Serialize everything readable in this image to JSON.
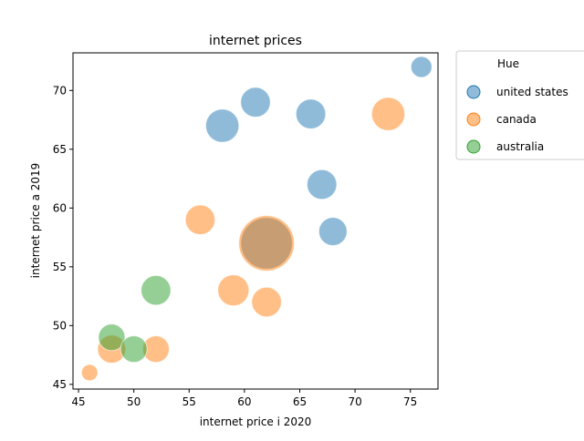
{
  "chart_data": {
    "type": "scatter",
    "title": "internet prices",
    "xlabel": "internet price i 2020",
    "ylabel": "internet price a 2019",
    "xlim": [
      44.5,
      77.5
    ],
    "ylim": [
      44.6,
      73.2
    ],
    "xticks": [
      45,
      50,
      55,
      60,
      65,
      70,
      75
    ],
    "yticks": [
      45,
      50,
      55,
      60,
      65,
      70
    ],
    "grid": false,
    "legend": {
      "title": "Hue",
      "placement": "outside-top-right",
      "entries": [
        "united states",
        "canada",
        "australia"
      ]
    },
    "series": [
      {
        "name": "united states",
        "color": "#1f77b4",
        "points": [
          {
            "x": 76,
            "y": 72,
            "size": 1
          },
          {
            "x": 61,
            "y": 69,
            "size": 2
          },
          {
            "x": 58,
            "y": 67,
            "size": 2.5
          },
          {
            "x": 66,
            "y": 68,
            "size": 2
          },
          {
            "x": 67,
            "y": 62,
            "size": 2
          },
          {
            "x": 68,
            "y": 58,
            "size": 1.8
          },
          {
            "x": 62,
            "y": 57,
            "size": 6
          }
        ]
      },
      {
        "name": "canada",
        "color": "#ff7f0e",
        "points": [
          {
            "x": 73,
            "y": 68,
            "size": 2.5
          },
          {
            "x": 56,
            "y": 59,
            "size": 2
          },
          {
            "x": 62,
            "y": 57,
            "size": 7
          },
          {
            "x": 59,
            "y": 53,
            "size": 2.2
          },
          {
            "x": 62,
            "y": 52,
            "size": 2
          },
          {
            "x": 48,
            "y": 48,
            "size": 1.8
          },
          {
            "x": 52,
            "y": 48,
            "size": 1.6
          },
          {
            "x": 46,
            "y": 46,
            "size": 0.6
          }
        ]
      },
      {
        "name": "australia",
        "color": "#2ca02c",
        "points": [
          {
            "x": 52,
            "y": 53,
            "size": 2
          },
          {
            "x": 48,
            "y": 49,
            "size": 1.6
          },
          {
            "x": 50,
            "y": 48,
            "size": 1.6
          }
        ]
      }
    ]
  }
}
